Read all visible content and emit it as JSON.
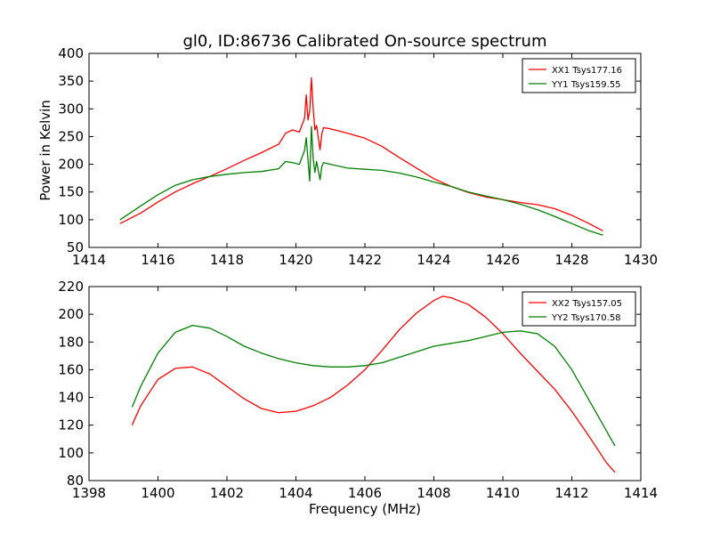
{
  "chart_data": [
    {
      "type": "line",
      "title": "gl0, ID:86736 Calibrated On-source spectrum",
      "xlabel": "",
      "ylabel": "Power in Kelvin",
      "xlim": [
        1414,
        1430
      ],
      "ylim": [
        50,
        400
      ],
      "xticks": [
        1414,
        1416,
        1418,
        1420,
        1422,
        1424,
        1426,
        1428,
        1430
      ],
      "yticks": [
        50,
        100,
        150,
        200,
        250,
        300,
        350,
        400
      ],
      "grid": false,
      "legend": "top-right",
      "colors": [
        "#ff0000",
        "#008000"
      ],
      "series": [
        {
          "name": "XX1 Tsys177.16",
          "x": [
            1414.9,
            1415.5,
            1416,
            1416.5,
            1417,
            1417.5,
            1418,
            1418.5,
            1419,
            1419.5,
            1419.7,
            1419.9,
            1420.1,
            1420.25,
            1420.3,
            1420.35,
            1420.4,
            1420.45,
            1420.5,
            1420.55,
            1420.6,
            1420.7,
            1420.75,
            1420.8,
            1421,
            1421.5,
            1422,
            1422.5,
            1423,
            1423.5,
            1424,
            1424.5,
            1425,
            1425.5,
            1426,
            1426.5,
            1427,
            1427.5,
            1428,
            1428.5,
            1428.9
          ],
          "values": [
            93,
            112,
            132,
            150,
            165,
            178,
            192,
            207,
            221,
            236,
            256,
            262,
            258,
            283,
            325,
            280,
            297,
            356,
            300,
            262,
            270,
            226,
            255,
            266,
            264,
            256,
            247,
            232,
            212,
            193,
            174,
            160,
            149,
            141,
            136,
            131,
            127,
            120,
            108,
            93,
            80
          ]
        },
        {
          "name": "YY1 Tsys159.55",
          "x": [
            1414.9,
            1415.5,
            1416,
            1416.5,
            1417,
            1417.5,
            1418,
            1418.5,
            1419,
            1419.5,
            1419.7,
            1419.9,
            1420.1,
            1420.25,
            1420.3,
            1420.35,
            1420.4,
            1420.45,
            1420.5,
            1420.55,
            1420.6,
            1420.7,
            1420.75,
            1420.8,
            1421,
            1421.5,
            1422,
            1422.5,
            1423,
            1423.5,
            1424,
            1424.5,
            1425,
            1425.5,
            1426,
            1426.5,
            1427,
            1427.5,
            1428,
            1428.5,
            1428.9
          ],
          "values": [
            100,
            125,
            145,
            162,
            172,
            178,
            182,
            185,
            187,
            192,
            205,
            203,
            200,
            225,
            248,
            207,
            170,
            268,
            210,
            185,
            205,
            172,
            196,
            203,
            200,
            193,
            191,
            189,
            184,
            177,
            168,
            160,
            150,
            143,
            136,
            128,
            118,
            106,
            93,
            80,
            72
          ]
        }
      ]
    },
    {
      "type": "line",
      "title": "",
      "xlabel": "Frequency (MHz)",
      "ylabel": "",
      "xlim": [
        1398,
        1414
      ],
      "ylim": [
        80,
        220
      ],
      "xticks": [
        1398,
        1400,
        1402,
        1404,
        1406,
        1408,
        1410,
        1412,
        1414
      ],
      "yticks": [
        80,
        100,
        120,
        140,
        160,
        180,
        200,
        220
      ],
      "grid": false,
      "legend": "top-right",
      "colors": [
        "#ff0000",
        "#008000"
      ],
      "series": [
        {
          "name": "XX2 Tsys157.05",
          "x": [
            1399.25,
            1399.5,
            1400,
            1400.5,
            1401,
            1401.5,
            1402,
            1402.5,
            1403,
            1403.5,
            1404,
            1404.5,
            1405,
            1405.5,
            1406,
            1406.5,
            1407,
            1407.5,
            1408,
            1408.25,
            1408.5,
            1409,
            1409.5,
            1410,
            1410.5,
            1411,
            1411.5,
            1412,
            1412.5,
            1413,
            1413.25
          ],
          "values": [
            120,
            134,
            153,
            161,
            162,
            157,
            148,
            139,
            132,
            129,
            130,
            134,
            140,
            149,
            160,
            174,
            189,
            201,
            210,
            213,
            212,
            207,
            198,
            186,
            172,
            159,
            146,
            130,
            112,
            93,
            86
          ]
        },
        {
          "name": "YY2 Tsys170.58",
          "x": [
            1399.25,
            1399.5,
            1400,
            1400.5,
            1401,
            1401.5,
            1402,
            1402.5,
            1403,
            1403.5,
            1404,
            1404.5,
            1405,
            1405.5,
            1406,
            1406.5,
            1407,
            1407.5,
            1408,
            1408.5,
            1409,
            1409.5,
            1410,
            1410.5,
            1411,
            1411.5,
            1412,
            1412.5,
            1413,
            1413.25
          ],
          "values": [
            133,
            148,
            172,
            187,
            192,
            190,
            184,
            177,
            172,
            168,
            165,
            163,
            162,
            162,
            163,
            165,
            169,
            173,
            177,
            179,
            181,
            184,
            187,
            188,
            186,
            177,
            160,
            138,
            116,
            105
          ]
        }
      ]
    }
  ]
}
